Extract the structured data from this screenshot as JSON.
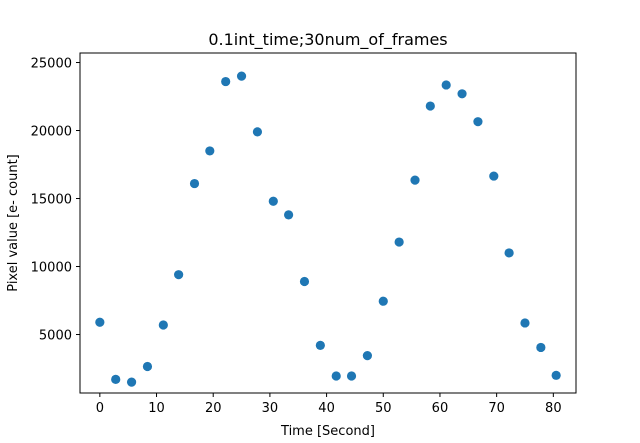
{
  "chart_data": {
    "type": "scatter",
    "title": "0.1int_time;30num_of_frames",
    "xlabel": "Time [Second]",
    "ylabel": "Pixel value [e- count]",
    "xlim": [
      -3.5,
      84
    ],
    "ylim": [
      700,
      25700
    ],
    "xticks": [
      0,
      10,
      20,
      30,
      40,
      50,
      60,
      70,
      80
    ],
    "yticks": [
      5000,
      10000,
      15000,
      20000,
      25000
    ],
    "grid": false,
    "marker_color": "#1f77b4",
    "series": [
      {
        "x": [
          0,
          2.8,
          5.6,
          8.4,
          11.2,
          13.9,
          16.7,
          19.4,
          22.2,
          25.0,
          27.8,
          30.6,
          33.3,
          36.1,
          38.9,
          41.7,
          44.4,
          47.2,
          50.0,
          52.8,
          55.6,
          58.3,
          61.1,
          63.9,
          66.7,
          69.5,
          72.2,
          75.0,
          77.8,
          80.5
        ],
        "y": [
          5900,
          1700,
          1500,
          2650,
          5700,
          9400,
          16100,
          18500,
          23600,
          24000,
          19900,
          14800,
          13800,
          8900,
          4200,
          1950,
          1950,
          3450,
          7450,
          11800,
          16350,
          21800,
          23350,
          22700,
          20650,
          16650,
          11000,
          5850,
          4050,
          2000
        ]
      }
    ]
  }
}
